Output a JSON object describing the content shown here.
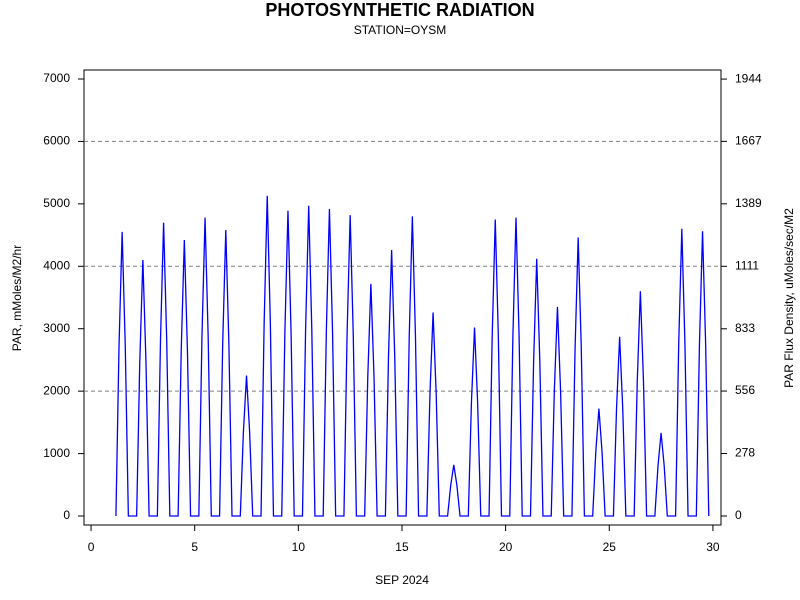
{
  "chart_data": {
    "type": "line",
    "title": "PHOTOSYNTHETIC RADIATION",
    "subtitle": "STATION=OYSM",
    "x_label": "SEP 2024",
    "y_label": "PAR, mMoles/M2/hr",
    "y2_label": "PAR Flux Density, uMoles/sec/M2",
    "xlim": [
      -0.34,
      30.39
    ],
    "xticks": [
      0,
      5,
      10,
      15,
      20,
      25,
      30
    ],
    "ylim": [
      -144,
      7144
    ],
    "yticks": [
      0,
      1000,
      2000,
      3000,
      4000,
      5000,
      6000,
      7000
    ],
    "y2lim": [
      -40,
      1984.4
    ],
    "y2ticks": [
      0,
      278,
      556,
      833,
      1111,
      1389,
      1667,
      1944
    ],
    "grid_values": [
      2000,
      4000,
      6000
    ],
    "x": [
      1.2,
      1.35,
      1.5,
      1.65,
      1.8,
      2.2,
      2.35,
      2.5,
      2.65,
      2.8,
      3.2,
      3.35,
      3.5,
      3.65,
      3.8,
      4.2,
      4.35,
      4.5,
      4.65,
      4.8,
      5.2,
      5.35,
      5.5,
      5.65,
      5.8,
      6.2,
      6.35,
      6.5,
      6.65,
      6.8,
      7.2,
      7.35,
      7.5,
      7.65,
      7.8,
      8.2,
      8.35,
      8.5,
      8.65,
      8.8,
      9.2,
      9.35,
      9.5,
      9.65,
      9.8,
      10.2,
      10.35,
      10.5,
      10.65,
      10.8,
      11.2,
      11.35,
      11.5,
      11.65,
      11.8,
      12.2,
      12.35,
      12.5,
      12.65,
      12.8,
      13.2,
      13.35,
      13.5,
      13.65,
      13.8,
      14.2,
      14.35,
      14.5,
      14.65,
      14.8,
      15.2,
      15.35,
      15.5,
      15.65,
      15.8,
      16.2,
      16.35,
      16.5,
      16.65,
      16.8,
      17.2,
      17.35,
      17.5,
      17.65,
      17.8,
      18.2,
      18.35,
      18.5,
      18.65,
      18.8,
      19.2,
      19.35,
      19.5,
      19.65,
      19.8,
      20.2,
      20.35,
      20.5,
      20.65,
      20.8,
      21.2,
      21.35,
      21.5,
      21.65,
      21.8,
      22.2,
      22.35,
      22.5,
      22.65,
      22.8,
      23.2,
      23.35,
      23.5,
      23.65,
      23.8,
      24.2,
      24.35,
      24.5,
      24.65,
      24.8,
      25.2,
      25.35,
      25.5,
      25.65,
      25.8,
      26.2,
      26.35,
      26.5,
      26.65,
      26.8,
      27.2,
      27.35,
      27.5,
      27.65,
      27.8,
      28.2,
      28.35,
      28.5,
      28.65,
      28.8,
      29.2,
      29.35,
      29.5,
      29.65,
      29.8
    ],
    "series": [
      {
        "color": "#0000ff",
        "values": [
          0,
          2730,
          4550,
          2730,
          0,
          0,
          2460,
          4100,
          2460,
          0,
          0,
          2820,
          4700,
          2820,
          0,
          0,
          2650,
          4420,
          2650,
          0,
          0,
          2870,
          4780,
          2870,
          0,
          0,
          2750,
          4580,
          2750,
          0,
          0,
          1350,
          2250,
          1350,
          0,
          0,
          3080,
          5130,
          3080,
          0,
          0,
          2930,
          4890,
          2930,
          0,
          0,
          2980,
          4970,
          2980,
          0,
          0,
          2950,
          4920,
          2950,
          0,
          0,
          2890,
          4820,
          2890,
          0,
          0,
          2230,
          3720,
          2230,
          0,
          0,
          2560,
          4260,
          2560,
          0,
          0,
          2880,
          4800,
          2880,
          0,
          0,
          1960,
          3260,
          1960,
          0,
          0,
          490,
          820,
          490,
          0,
          0,
          1810,
          3020,
          1810,
          0,
          0,
          2850,
          4750,
          2850,
          0,
          0,
          2870,
          4780,
          2870,
          0,
          0,
          2470,
          4120,
          2470,
          0,
          0,
          2010,
          3350,
          2010,
          0,
          0,
          2680,
          4460,
          2680,
          0,
          0,
          1030,
          1720,
          1030,
          0,
          0,
          1720,
          2870,
          1720,
          0,
          0,
          2160,
          3600,
          2160,
          0,
          0,
          800,
          1330,
          800,
          0,
          0,
          2760,
          4600,
          2760,
          0,
          0,
          2740,
          4560,
          2740,
          0
        ]
      }
    ]
  }
}
